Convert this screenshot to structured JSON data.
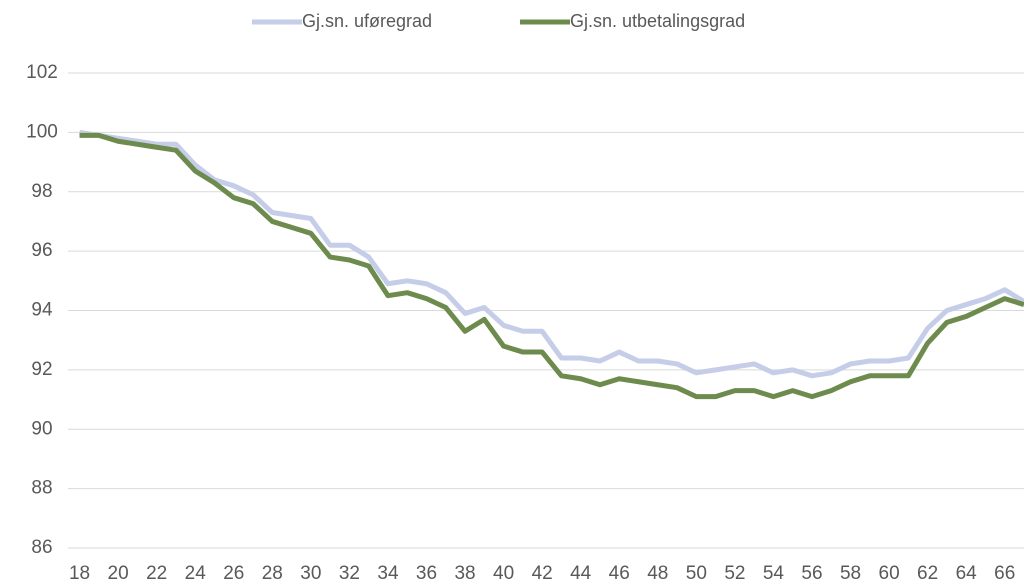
{
  "chart_data": {
    "type": "line",
    "x": [
      18,
      19,
      20,
      21,
      22,
      23,
      24,
      25,
      26,
      27,
      28,
      29,
      30,
      31,
      32,
      33,
      34,
      35,
      36,
      37,
      38,
      39,
      40,
      41,
      42,
      43,
      44,
      45,
      46,
      47,
      48,
      49,
      50,
      51,
      52,
      53,
      54,
      55,
      56,
      57,
      58,
      59,
      60,
      61,
      62,
      63,
      64,
      65,
      66,
      67
    ],
    "xlim": [
      17.4,
      67
    ],
    "xticks": [
      18,
      20,
      22,
      24,
      26,
      28,
      30,
      32,
      34,
      36,
      38,
      40,
      42,
      44,
      46,
      48,
      50,
      52,
      54,
      56,
      58,
      60,
      62,
      64,
      66
    ],
    "ylim": [
      86,
      102
    ],
    "yticks": [
      86,
      88,
      90,
      92,
      94,
      96,
      98,
      100,
      102
    ],
    "grid": true,
    "legend": "top",
    "series": [
      {
        "name": "Gj.sn. uføregrad",
        "color": "#c5cde8",
        "values": [
          100.0,
          99.9,
          99.8,
          99.7,
          99.6,
          99.6,
          98.9,
          98.4,
          98.2,
          97.9,
          97.3,
          97.2,
          97.1,
          96.2,
          96.2,
          95.8,
          94.9,
          95.0,
          94.9,
          94.6,
          93.9,
          94.1,
          93.5,
          93.3,
          93.3,
          92.4,
          92.4,
          92.3,
          92.6,
          92.3,
          92.3,
          92.2,
          91.9,
          92.0,
          92.1,
          92.2,
          91.9,
          92.0,
          91.8,
          91.9,
          92.2,
          92.3,
          92.3,
          92.4,
          93.4,
          94.0,
          94.2,
          94.4,
          94.7,
          94.3
        ]
      },
      {
        "name": "Gj.sn. utbetalingsgrad",
        "color": "#6e8b4e",
        "values": [
          99.9,
          99.9,
          99.7,
          99.6,
          99.5,
          99.4,
          98.7,
          98.3,
          97.8,
          97.6,
          97.0,
          96.8,
          96.6,
          95.8,
          95.7,
          95.5,
          94.5,
          94.6,
          94.4,
          94.1,
          93.3,
          93.7,
          92.8,
          92.6,
          92.6,
          91.8,
          91.7,
          91.5,
          91.7,
          91.6,
          91.5,
          91.4,
          91.1,
          91.1,
          91.3,
          91.3,
          91.1,
          91.3,
          91.1,
          91.3,
          91.6,
          91.8,
          91.8,
          91.8,
          92.9,
          93.6,
          93.8,
          94.1,
          94.4,
          94.2
        ]
      }
    ]
  }
}
